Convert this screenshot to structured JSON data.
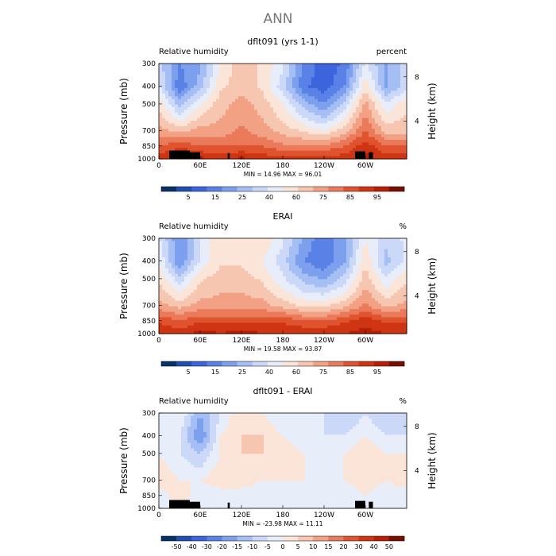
{
  "figure_title": "ANN",
  "chart_data": [
    {
      "type": "heatmap",
      "title": "dflt091 (yrs 1-1)",
      "left_text": "Relative humidity",
      "right_text": "percent",
      "ylabel": "Pressure (mb)",
      "y2label": "Height (km)",
      "yticks": [
        "300",
        "400",
        "500",
        "700",
        "850",
        "1000"
      ],
      "y2ticks": [
        "8",
        "4"
      ],
      "xticks": [
        "0",
        "60E",
        "120E",
        "180",
        "120W",
        "60W"
      ],
      "min_label": "MIN =",
      "min_value": "14.96",
      "max_label": "MAX =",
      "max_value": "96.01",
      "colorbar_labels": [
        "5",
        "15",
        "25",
        "40",
        "60",
        "75",
        "85",
        "95"
      ],
      "colorbar_colors": [
        "#08306b",
        "#1e50b4",
        "#3c64dc",
        "#5a82e6",
        "#7da0ee",
        "#a5bff4",
        "#cbd8f7",
        "#e8edfa",
        "#fbe4d8",
        "#f7c6b0",
        "#f2a184",
        "#ea7a5a",
        "#e0532f",
        "#cf3413",
        "#b71f05",
        "#7a0d02"
      ],
      "colorscale": "diverging-blue-red",
      "xlim": [
        0,
        360
      ],
      "ylim": [
        1000,
        300
      ],
      "vmin": 0,
      "vmax": 100,
      "field_grid": {
        "x": [
          0,
          30,
          60,
          90,
          120,
          150,
          180,
          210,
          240,
          270,
          300,
          330,
          360
        ],
        "levels": [
          300,
          400,
          500,
          700,
          850,
          1000
        ],
        "values": [
          [
            40,
            25,
            30,
            50,
            60,
            55,
            45,
            25,
            15,
            20,
            45,
            30,
            40
          ],
          [
            45,
            20,
            35,
            55,
            60,
            55,
            40,
            20,
            15,
            25,
            55,
            30,
            40
          ],
          [
            55,
            35,
            50,
            60,
            65,
            60,
            50,
            35,
            25,
            40,
            65,
            45,
            55
          ],
          [
            65,
            60,
            65,
            65,
            70,
            65,
            60,
            55,
            50,
            60,
            75,
            60,
            60
          ],
          [
            75,
            80,
            75,
            75,
            75,
            75,
            70,
            70,
            70,
            75,
            85,
            75,
            75
          ],
          [
            85,
            90,
            90,
            85,
            90,
            85,
            85,
            85,
            85,
            85,
            90,
            85,
            85
          ]
        ]
      },
      "terrain": true
    },
    {
      "type": "heatmap",
      "title": "ERAI",
      "left_text": "Relative humidity",
      "right_text": "%",
      "ylabel": "Pressure (mb)",
      "y2label": "Height (km)",
      "yticks": [
        "300",
        "400",
        "500",
        "700",
        "850",
        "1000"
      ],
      "y2ticks": [
        "8",
        "4"
      ],
      "xticks": [
        "0",
        "60E",
        "120E",
        "180",
        "120W",
        "60W"
      ],
      "min_label": "MIN =",
      "min_value": "19.58",
      "max_label": "MAX =",
      "max_value": "93.87",
      "colorbar_labels": [
        "5",
        "15",
        "25",
        "40",
        "60",
        "75",
        "85",
        "95"
      ],
      "colorbar_colors": [
        "#08306b",
        "#1e50b4",
        "#3c64dc",
        "#5a82e6",
        "#7da0ee",
        "#a5bff4",
        "#cbd8f7",
        "#e8edfa",
        "#fbe4d8",
        "#f7c6b0",
        "#f2a184",
        "#ea7a5a",
        "#e0532f",
        "#cf3413",
        "#b71f05",
        "#7a0d02"
      ],
      "colorscale": "diverging-blue-red",
      "xlim": [
        0,
        360
      ],
      "ylim": [
        1000,
        300
      ],
      "vmin": 0,
      "vmax": 100,
      "field_grid": {
        "x": [
          0,
          30,
          60,
          90,
          120,
          150,
          180,
          210,
          240,
          270,
          300,
          330,
          360
        ],
        "levels": [
          300,
          400,
          500,
          700,
          850,
          1000
        ],
        "values": [
          [
            45,
            25,
            45,
            55,
            55,
            55,
            45,
            30,
            20,
            30,
            50,
            40,
            45
          ],
          [
            50,
            25,
            45,
            55,
            55,
            50,
            40,
            25,
            20,
            30,
            55,
            35,
            45
          ],
          [
            55,
            40,
            55,
            60,
            60,
            55,
            45,
            35,
            30,
            40,
            60,
            45,
            55
          ],
          [
            65,
            60,
            65,
            65,
            65,
            65,
            60,
            55,
            55,
            60,
            70,
            60,
            65
          ],
          [
            80,
            75,
            80,
            80,
            80,
            80,
            80,
            75,
            75,
            80,
            85,
            80,
            80
          ],
          [
            88,
            85,
            90,
            88,
            90,
            88,
            88,
            88,
            88,
            88,
            90,
            88,
            88
          ]
        ]
      },
      "terrain": false
    },
    {
      "type": "heatmap",
      "title": "dflt091 - ERAI",
      "left_text": "Relative humidity",
      "right_text": "%",
      "ylabel": "Pressure (mb)",
      "y2label": "Height (km)",
      "yticks": [
        "300",
        "400",
        "500",
        "700",
        "850",
        "1000"
      ],
      "y2ticks": [
        "8",
        "4"
      ],
      "xticks": [
        "0",
        "60E",
        "120E",
        "180",
        "120W",
        "60W"
      ],
      "min_label": "MIN =",
      "min_value": "-23.98",
      "max_label": "MAX =",
      "max_value": "11.11",
      "colorbar_labels": [
        "-50",
        "-40",
        "-30",
        "-20",
        "-15",
        "-10",
        "-5",
        "0",
        "5",
        "10",
        "15",
        "20",
        "30",
        "40",
        "50"
      ],
      "colorbar_colors": [
        "#08306b",
        "#1e50b4",
        "#3c64dc",
        "#5a82e6",
        "#7da0ee",
        "#a5bff4",
        "#cbd8f7",
        "#e8edfa",
        "#fbe4d8",
        "#f7c6b0",
        "#f2a184",
        "#ea7a5a",
        "#e0532f",
        "#cf3413",
        "#b71f05",
        "#7a0d02"
      ],
      "colorscale": "diverging-blue-red",
      "xlim": [
        0,
        360
      ],
      "ylim": [
        1000,
        300
      ],
      "vmin": -40,
      "vmax": 40,
      "field_grid": {
        "x": [
          0,
          30,
          60,
          90,
          120,
          150,
          180,
          210,
          240,
          270,
          300,
          330,
          360
        ],
        "levels": [
          300,
          400,
          500,
          700,
          850,
          1000
        ],
        "values": [
          [
            -5,
            0,
            -15,
            -5,
            5,
            0,
            -5,
            -5,
            -5,
            -10,
            -5,
            -10,
            -5
          ],
          [
            -5,
            -5,
            -20,
            0,
            5,
            5,
            0,
            -5,
            -5,
            -5,
            0,
            -5,
            -5
          ],
          [
            0,
            -5,
            -10,
            0,
            5,
            5,
            5,
            0,
            -5,
            0,
            5,
            0,
            0
          ],
          [
            5,
            0,
            0,
            5,
            5,
            0,
            0,
            0,
            0,
            0,
            5,
            0,
            5
          ],
          [
            -5,
            5,
            -5,
            -5,
            -5,
            -5,
            -5,
            -5,
            -5,
            -5,
            0,
            -5,
            -5
          ],
          [
            -3,
            0,
            -3,
            -3,
            0,
            -3,
            -3,
            -3,
            -3,
            -3,
            0,
            -3,
            -3
          ]
        ]
      },
      "terrain": true
    }
  ]
}
